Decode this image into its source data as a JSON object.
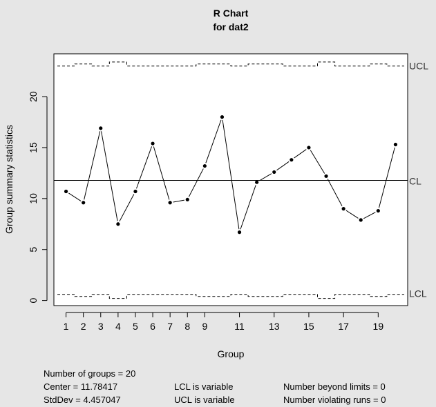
{
  "chart_data": {
    "type": "line",
    "title": "R Chart",
    "subtitle": "for dat2",
    "xlabel": "Group",
    "ylabel": "Group summary statistics",
    "xlim": [
      0.3,
      20.7
    ],
    "ylim": [
      -0.5,
      24.2
    ],
    "x_ticks": [
      1,
      2,
      3,
      4,
      5,
      6,
      7,
      8,
      9,
      11,
      13,
      15,
      17,
      19
    ],
    "y_ticks": [
      0,
      5,
      10,
      15,
      20
    ],
    "grid": false,
    "legend": "none",
    "x": [
      1,
      2,
      3,
      4,
      5,
      6,
      7,
      8,
      9,
      10,
      11,
      12,
      13,
      14,
      15,
      16,
      17,
      18,
      19,
      20
    ],
    "values": [
      10.7,
      9.6,
      16.9,
      7.5,
      10.7,
      15.4,
      9.6,
      9.9,
      13.2,
      18.0,
      6.7,
      11.6,
      12.6,
      13.8,
      15.0,
      12.2,
      9.0,
      7.9,
      8.8,
      15.3
    ],
    "center": 11.78417,
    "ucl": [
      23.0,
      23.2,
      23.0,
      23.4,
      23.0,
      23.0,
      23.0,
      23.0,
      23.2,
      23.2,
      23.0,
      23.2,
      23.2,
      23.0,
      23.0,
      23.4,
      23.0,
      23.0,
      23.2,
      23.0
    ],
    "lcl": [
      0.6,
      0.4,
      0.6,
      0.2,
      0.6,
      0.6,
      0.6,
      0.6,
      0.4,
      0.4,
      0.6,
      0.4,
      0.4,
      0.6,
      0.6,
      0.2,
      0.6,
      0.6,
      0.4,
      0.6
    ],
    "labels": {
      "ucl": "UCL",
      "cl": "CL",
      "lcl": "LCL"
    },
    "colors": {
      "background": "#e6e6e6",
      "ink": "#000000"
    }
  },
  "stats": {
    "groups": "Number of groups = 20",
    "center": "Center = 11.78417",
    "stddev": "StdDev = 4.457047",
    "lcl_note": "LCL is variable",
    "ucl_note": "UCL is variable",
    "beyond": "Number beyond limits = 0",
    "violating": "Number violating runs = 0"
  }
}
